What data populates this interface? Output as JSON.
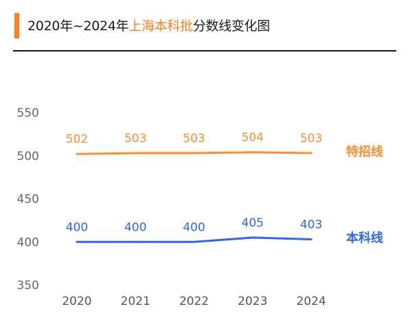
{
  "header": {
    "title_prefix": "2020年~2024年",
    "title_highlight": "上海本科批",
    "title_suffix": "分数线变化图",
    "accent_color": "#ff7f1f"
  },
  "chart_data": {
    "type": "line",
    "title": "2020年~2024年上海本科批分数线变化图",
    "categories": [
      "2020",
      "2021",
      "2022",
      "2023",
      "2024"
    ],
    "yticks": [
      350,
      400,
      450,
      500,
      550
    ],
    "ylim": [
      350,
      550
    ],
    "grid": false,
    "legend_placement": "right, at line ends",
    "series": [
      {
        "name": "特招线",
        "values": [
          502,
          503,
          503,
          504,
          503
        ],
        "color": "#ff8c2e"
      },
      {
        "name": "本科线",
        "values": [
          400,
          400,
          400,
          405,
          403
        ],
        "color": "#2f66f0"
      }
    ]
  }
}
